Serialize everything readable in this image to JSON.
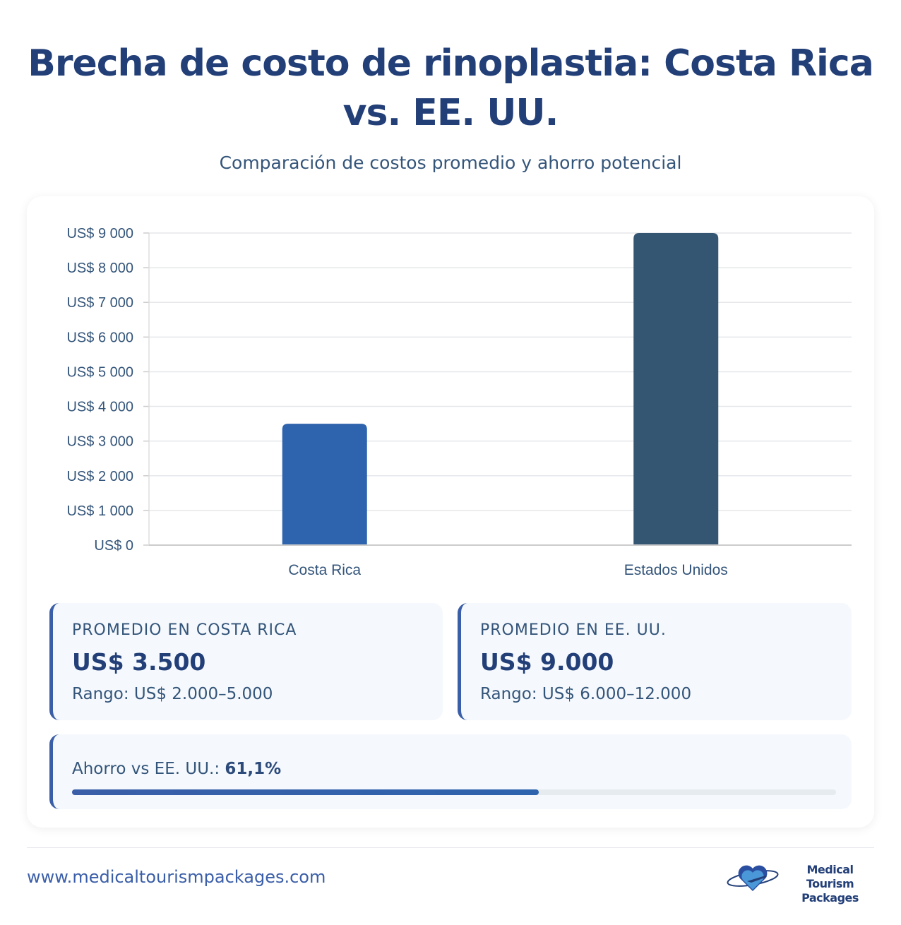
{
  "header": {
    "title": "Brecha de costo de rinoplastia: Costa Rica vs. EE. UU.",
    "subtitle": "Comparación de costos promedio y ahorro potencial"
  },
  "chart_data": {
    "type": "bar",
    "categories": [
      "Costa Rica",
      "Estados Unidos"
    ],
    "values": [
      3500,
      9000
    ],
    "colors": [
      "#2e63ad",
      "#345673"
    ],
    "ylim": [
      0,
      9000
    ],
    "yticks": [
      0,
      1000,
      2000,
      3000,
      4000,
      5000,
      6000,
      7000,
      8000,
      9000
    ],
    "ytick_labels": [
      "US$ 0",
      "US$ 1 000",
      "US$ 2 000",
      "US$ 3 000",
      "US$ 4 000",
      "US$ 5 000",
      "US$ 6 000",
      "US$ 7 000",
      "US$ 8 000",
      "US$ 9 000"
    ],
    "grid": true
  },
  "stats": [
    {
      "label": "PROMEDIO EN COSTA RICA",
      "value": "US$ 3.500",
      "range": "Rango: US$ 2.000–5.000"
    },
    {
      "label": "PROMEDIO EN EE. UU.",
      "value": "US$ 9.000",
      "range": "Rango: US$ 6.000–12.000"
    }
  ],
  "savings": {
    "label": "Ahorro vs EE. UU.:",
    "value": "61,1%",
    "percent": 61.1
  },
  "footer": {
    "url": "www.medicaltourismpackages.com",
    "logo_text": "Medical Tourism Packages"
  },
  "colors": {
    "title": "#233f78",
    "accent": "#3a5ea8"
  }
}
